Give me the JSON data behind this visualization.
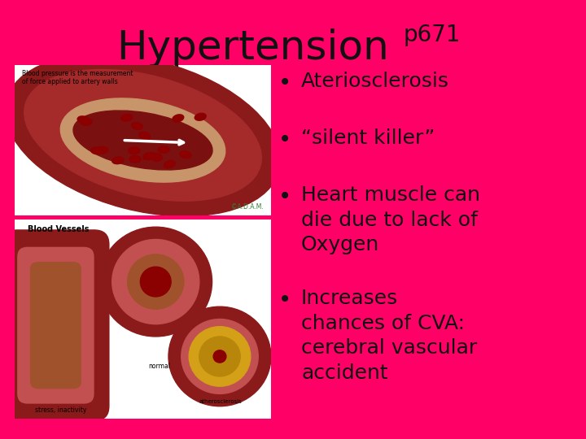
{
  "background_color": "#FF0066",
  "title": "Hypertension",
  "title_suffix": "p671",
  "title_fontsize": 36,
  "title_suffix_fontsize": 20,
  "title_color": "#111111",
  "bullet_points": [
    "Ateriosclerosis",
    "“silent killer”",
    "Heart muscle can\ndie due to lack of\nOxygen",
    "Increases\nchances of CVA:\ncerebral vascular\naccident"
  ],
  "bullet_color": "#111111",
  "bullet_fontsize": 18,
  "img1_label_top": "Blood pressure is the measurement\nof force applied to artery walls",
  "img1_label_bottom": "©A.D.A.M.",
  "img2_label_title": "Blood Vessels",
  "img2_label_normal": "normal",
  "img2_label_athero": "atherosclerosis",
  "img2_label_stress": "stress, inactivity"
}
